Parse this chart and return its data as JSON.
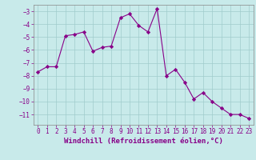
{
  "x": [
    0,
    1,
    2,
    3,
    4,
    5,
    6,
    7,
    8,
    9,
    10,
    11,
    12,
    13,
    14,
    15,
    16,
    17,
    18,
    19,
    20,
    21,
    22,
    23
  ],
  "y": [
    -7.7,
    -7.3,
    -7.3,
    -4.9,
    -4.8,
    -4.6,
    -6.1,
    -5.8,
    -5.7,
    -3.5,
    -3.2,
    -4.1,
    -4.6,
    -2.8,
    -8.0,
    -7.5,
    -8.5,
    -9.8,
    -9.3,
    -10.0,
    -10.5,
    -11.0,
    -11.0,
    -11.3
  ],
  "line_color": "#880088",
  "marker": "D",
  "marker_size": 2.2,
  "bg_color": "#c8eaea",
  "grid_color": "#a0cccc",
  "tick_color": "#880088",
  "label_color": "#880088",
  "xlabel": "Windchill (Refroidissement éolien,°C)",
  "xlim": [
    -0.5,
    23.5
  ],
  "ylim": [
    -11.8,
    -2.5
  ],
  "yticks": [
    -3,
    -4,
    -5,
    -6,
    -7,
    -8,
    -9,
    -10,
    -11
  ],
  "xticks": [
    0,
    1,
    2,
    3,
    4,
    5,
    6,
    7,
    8,
    9,
    10,
    11,
    12,
    13,
    14,
    15,
    16,
    17,
    18,
    19,
    20,
    21,
    22,
    23
  ],
  "tick_fontsize": 5.5,
  "xlabel_fontsize": 6.5,
  "spine_color": "#888888"
}
